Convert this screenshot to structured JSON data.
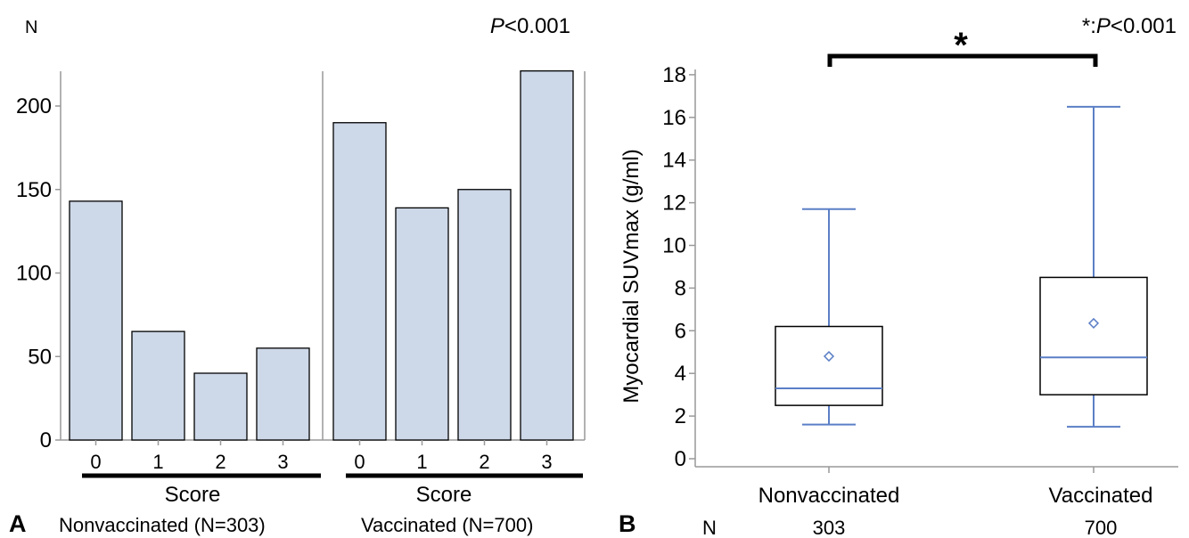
{
  "figure": {
    "panel_a_letter": "A",
    "panel_b_letter": "B"
  },
  "chart_data": [
    {
      "type": "bar",
      "panel": "A",
      "ylabel": "N",
      "pvalue_prefix": "P",
      "pvalue_suffix": "<0.001",
      "ylim": [
        0,
        230
      ],
      "yticks": [
        "0",
        "50",
        "100",
        "150",
        "200"
      ],
      "xlabel_groups": [
        "Score",
        "Score"
      ],
      "groups": [
        {
          "name": "Nonvaccinated (N=303)",
          "categories": [
            "0",
            "1",
            "2",
            "3"
          ],
          "values": [
            143,
            65,
            40,
            55
          ]
        },
        {
          "name": "Vaccinated (N=700)",
          "categories": [
            "0",
            "1",
            "2",
            "3"
          ],
          "values": [
            190,
            139,
            150,
            221
          ]
        }
      ],
      "colors": {
        "bar_fill": "#cdd8e8",
        "bar_stroke": "#000000"
      }
    },
    {
      "type": "box",
      "panel": "B",
      "ylabel": "Myocardial SUVmax (g/ml)",
      "ylim": [
        -0.5,
        18.3
      ],
      "yticks": [
        "0",
        "2",
        "4",
        "6",
        "8",
        "10",
        "12",
        "14",
        "16",
        "18"
      ],
      "significance": {
        "marker": "*",
        "legend_prefix": "*:",
        "legend_p": "P",
        "legend_suffix": "<0.001"
      },
      "n_label": "N",
      "groups": [
        {
          "name": "Nonvaccinated",
          "n": "303",
          "whisker_low": 1.6,
          "q1": 2.5,
          "median": 3.3,
          "q3": 6.2,
          "whisker_high": 11.7,
          "mean": 4.8
        },
        {
          "name": "Vaccinated",
          "n": "700",
          "whisker_low": 1.5,
          "q1": 3.0,
          "median": 4.75,
          "q3": 8.5,
          "whisker_high": 16.5,
          "mean": 6.35
        }
      ],
      "colors": {
        "whisker": "#5b7fc6",
        "box_stroke": "#000000"
      }
    }
  ]
}
